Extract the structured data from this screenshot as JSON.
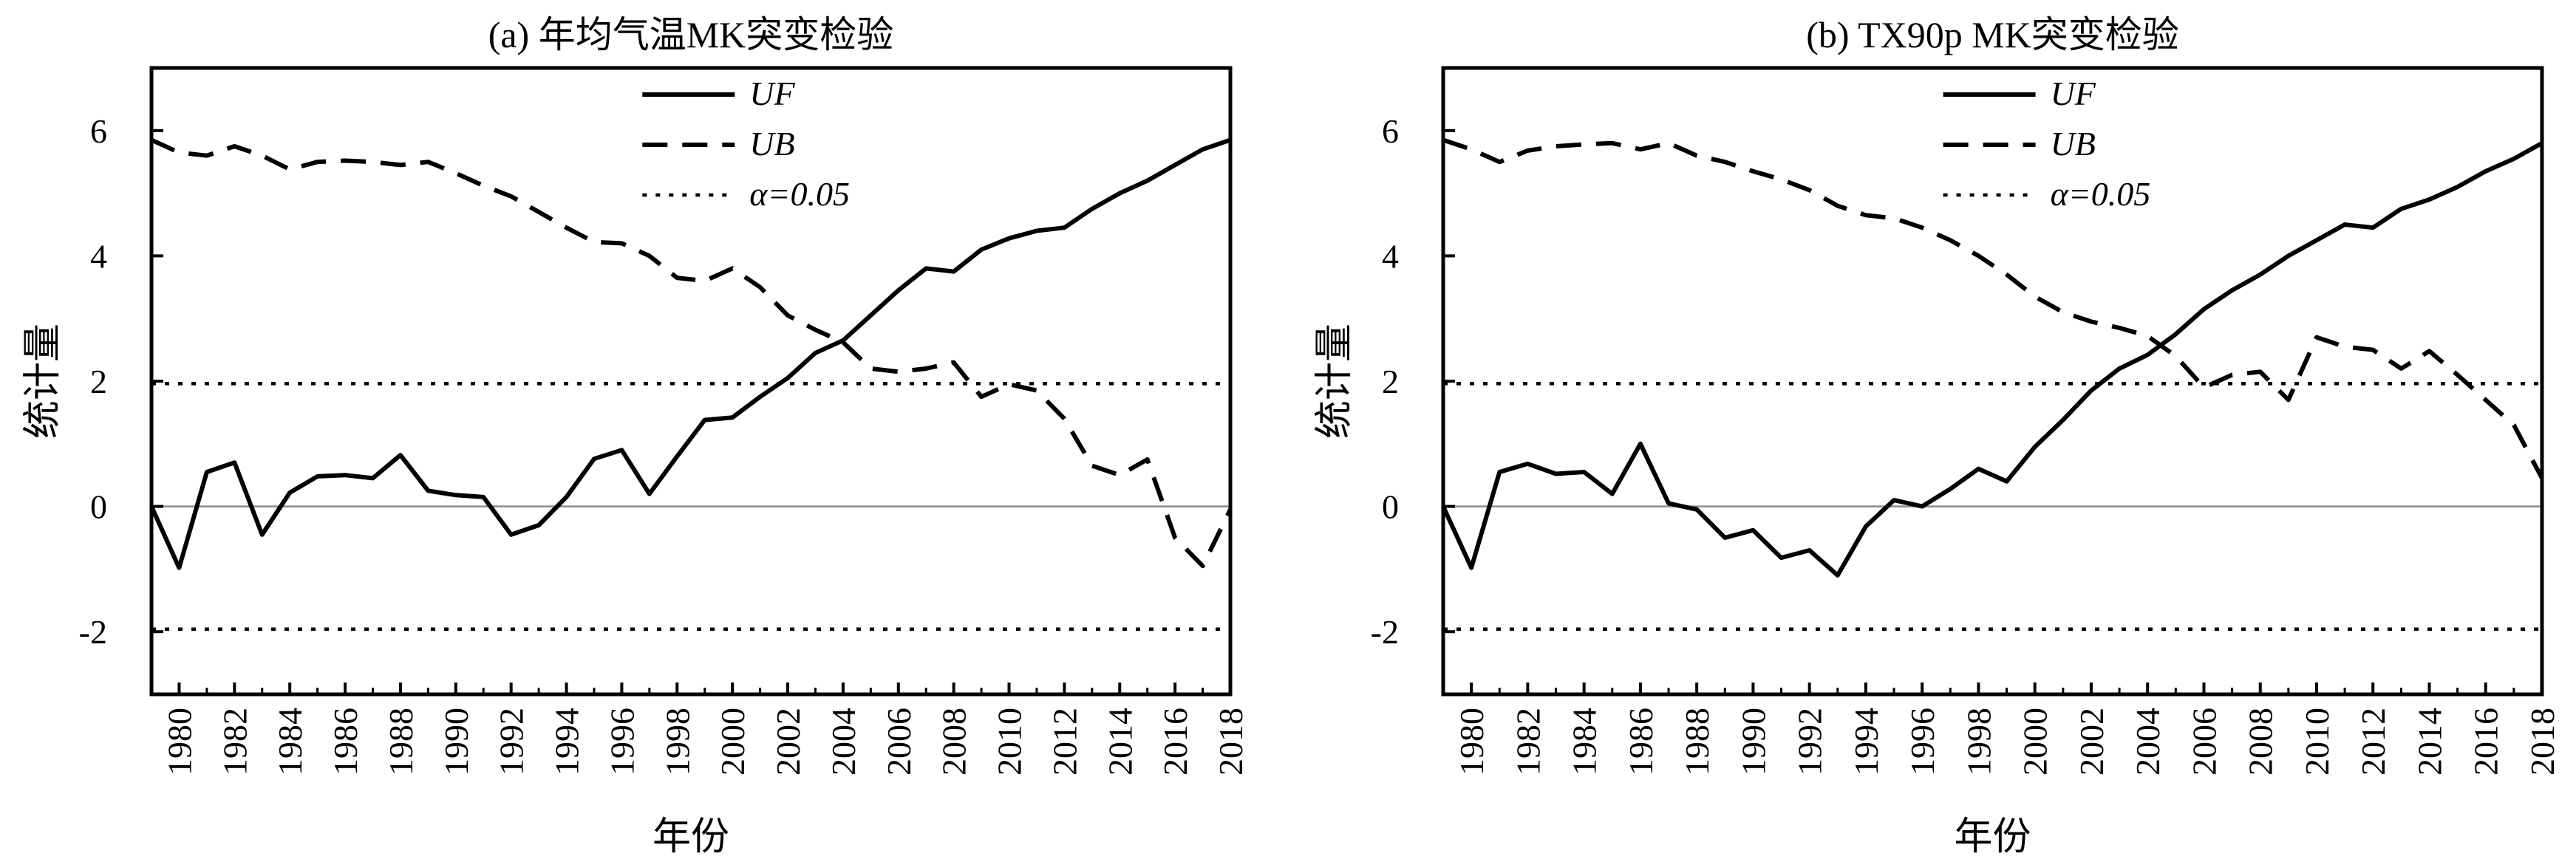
{
  "chart_data": [
    {
      "type": "line",
      "title": "(a) 年均气温MK突变检验",
      "xlabel": "年份",
      "ylabel": "统计量",
      "xlim": [
        1979,
        2018
      ],
      "ylim": [
        -3,
        7
      ],
      "xticks": [
        "1980",
        "1982",
        "1984",
        "1986",
        "1988",
        "1990",
        "1992",
        "1994",
        "1996",
        "1998",
        "2000",
        "2002",
        "2004",
        "2006",
        "2008",
        "2010",
        "2012",
        "2014",
        "2016",
        "2018"
      ],
      "yticks": [
        6,
        4,
        2,
        0,
        -2
      ],
      "ytick_labels": [
        "6",
        "4",
        "2",
        "0",
        "-2"
      ],
      "x": [
        1979,
        1980,
        1981,
        1982,
        1983,
        1984,
        1985,
        1986,
        1987,
        1988,
        1989,
        1990,
        1991,
        1992,
        1993,
        1994,
        1995,
        1996,
        1997,
        1998,
        1999,
        2000,
        2001,
        2002,
        2003,
        2004,
        2005,
        2006,
        2007,
        2008,
        2009,
        2010,
        2011,
        2012,
        2013,
        2014,
        2015,
        2016,
        2017,
        2018
      ],
      "series": [
        {
          "name": "UF",
          "style": "solid",
          "values": [
            0.0,
            -0.98,
            0.55,
            0.7,
            -0.45,
            0.22,
            0.48,
            0.5,
            0.45,
            0.82,
            0.25,
            0.18,
            0.15,
            -0.45,
            -0.3,
            0.15,
            0.76,
            0.9,
            0.2,
            0.8,
            1.38,
            1.42,
            1.75,
            2.05,
            2.45,
            2.65,
            3.05,
            3.45,
            3.8,
            3.75,
            4.1,
            4.28,
            4.4,
            4.45,
            4.75,
            5.0,
            5.2,
            5.45,
            5.7,
            5.85
          ]
        },
        {
          "name": "UB",
          "style": "dashed",
          "values": [
            5.85,
            5.65,
            5.6,
            5.75,
            5.6,
            5.38,
            5.5,
            5.52,
            5.5,
            5.45,
            5.5,
            5.32,
            5.12,
            4.95,
            4.7,
            4.45,
            4.22,
            4.2,
            4.0,
            3.65,
            3.6,
            3.8,
            3.5,
            3.05,
            2.82,
            2.62,
            2.2,
            2.15,
            2.2,
            2.3,
            1.75,
            1.95,
            1.85,
            1.4,
            0.65,
            0.5,
            0.75,
            -0.5,
            -0.95,
            -0.05
          ]
        }
      ],
      "threshold_label": "α=0.05",
      "thresholds": [
        1.96,
        -1.96
      ],
      "zero_line": 0,
      "legend_position": "top-center"
    },
    {
      "type": "line",
      "title": "(b) TX90p MK突变检验",
      "xlabel": "年份",
      "ylabel": "统计量",
      "xlim": [
        1979,
        2018
      ],
      "ylim": [
        -3,
        7
      ],
      "xticks": [
        "1980",
        "1982",
        "1984",
        "1986",
        "1988",
        "1990",
        "1992",
        "1994",
        "1996",
        "1998",
        "2000",
        "2002",
        "2004",
        "2006",
        "2008",
        "2010",
        "2012",
        "2014",
        "2016",
        "2018"
      ],
      "yticks": [
        6,
        4,
        2,
        0,
        -2
      ],
      "ytick_labels": [
        "6",
        "4",
        "2",
        "0",
        "-2"
      ],
      "x": [
        1979,
        1980,
        1981,
        1982,
        1983,
        1984,
        1985,
        1986,
        1987,
        1988,
        1989,
        1990,
        1991,
        1992,
        1993,
        1994,
        1995,
        1996,
        1997,
        1998,
        1999,
        2000,
        2001,
        2002,
        2003,
        2004,
        2005,
        2006,
        2007,
        2008,
        2009,
        2010,
        2011,
        2012,
        2013,
        2014,
        2015,
        2016,
        2017,
        2018
      ],
      "series": [
        {
          "name": "UF",
          "style": "solid",
          "values": [
            0.0,
            -0.98,
            0.55,
            0.68,
            0.52,
            0.55,
            0.2,
            1.0,
            0.05,
            -0.05,
            -0.5,
            -0.38,
            -0.82,
            -0.7,
            -1.1,
            -0.32,
            0.1,
            0.0,
            0.28,
            0.6,
            0.4,
            0.95,
            1.38,
            1.85,
            2.2,
            2.42,
            2.75,
            3.15,
            3.45,
            3.7,
            4.0,
            4.25,
            4.5,
            4.45,
            4.75,
            4.9,
            5.1,
            5.35,
            5.55,
            5.8
          ]
        },
        {
          "name": "UB",
          "style": "dashed",
          "values": [
            5.85,
            5.7,
            5.5,
            5.68,
            5.75,
            5.78,
            5.8,
            5.7,
            5.8,
            5.6,
            5.5,
            5.35,
            5.22,
            5.05,
            4.8,
            4.65,
            4.6,
            4.45,
            4.25,
            4.0,
            3.7,
            3.35,
            3.1,
            2.95,
            2.85,
            2.72,
            2.4,
            1.9,
            2.1,
            2.15,
            1.7,
            2.7,
            2.55,
            2.5,
            2.2,
            2.48,
            2.1,
            1.7,
            1.3,
            0.45
          ]
        }
      ],
      "threshold_label": "α=0.05",
      "thresholds": [
        1.96,
        -1.96
      ],
      "zero_line": 0,
      "legend_position": "top-center"
    }
  ]
}
